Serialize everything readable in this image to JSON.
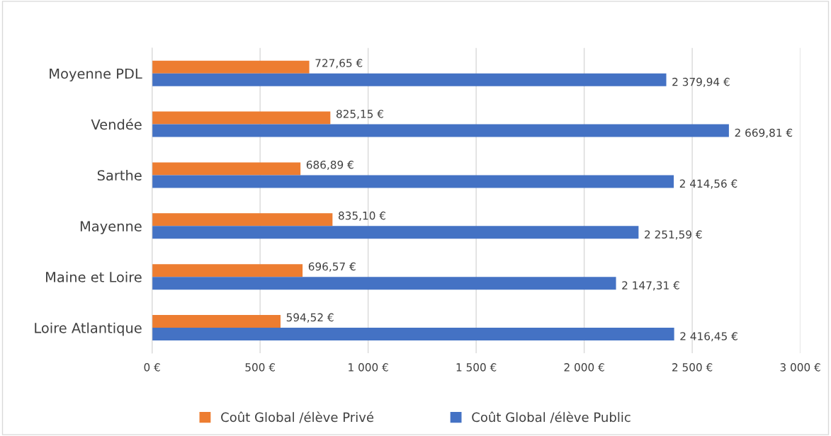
{
  "chart_data": {
    "type": "bar",
    "orientation": "horizontal",
    "categories": [
      "Moyenne PDL",
      "Vendée",
      "Sarthe",
      "Mayenne",
      "Maine et Loire",
      "Loire Atlantique"
    ],
    "series": [
      {
        "name": "Coût Global /élève Privé",
        "color": "#ed7d31",
        "values": [
          727.65,
          825.15,
          686.89,
          835.1,
          696.57,
          594.52
        ],
        "value_labels": [
          "727,65 €",
          "825,15 €",
          "686,89 €",
          "835,10 €",
          "696,57 €",
          "594,52 €"
        ]
      },
      {
        "name": "Coût Global /élève Public",
        "color": "#4472c4",
        "values": [
          2379.94,
          2669.81,
          2414.56,
          2251.59,
          2147.31,
          2416.45
        ],
        "value_labels": [
          "2 379,94 €",
          "2 669,81 €",
          "2 414,56 €",
          "2 251,59 €",
          "2 147,31 €",
          "2 416,45 €"
        ]
      }
    ],
    "xlim": [
      0,
      3000
    ],
    "xticks": [
      {
        "value": 0,
        "label": "0 €"
      },
      {
        "value": 500,
        "label": "500 €"
      },
      {
        "value": 1000,
        "label": "1 000 €"
      },
      {
        "value": 1500,
        "label": "1 500 €"
      },
      {
        "value": 2000,
        "label": "2 000 €"
      },
      {
        "value": 2500,
        "label": "2 500 €"
      },
      {
        "value": 3000,
        "label": "3 000 €"
      }
    ],
    "grid": "x",
    "legend": "bottom"
  }
}
